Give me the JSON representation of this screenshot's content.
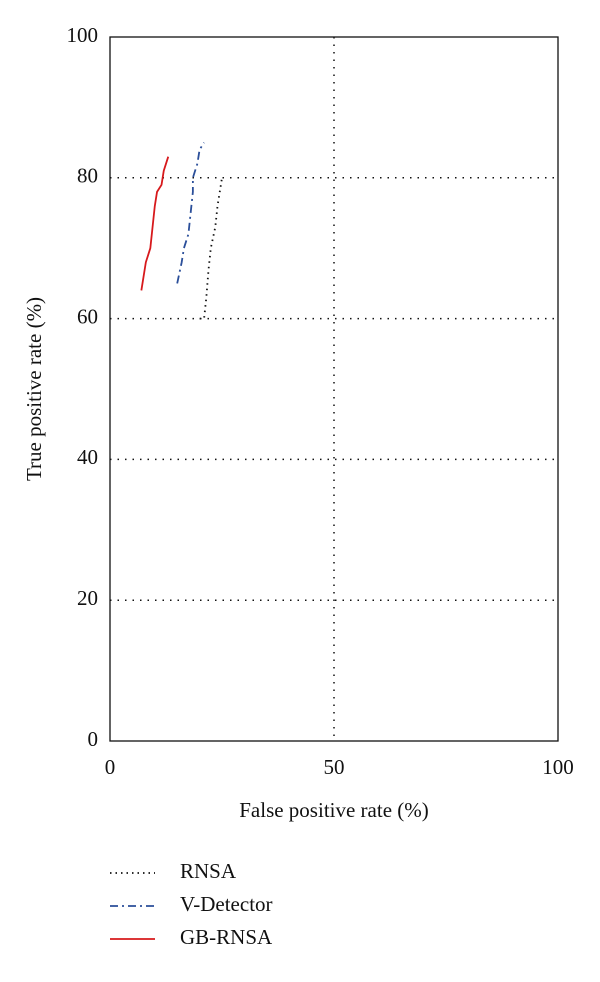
{
  "chart_data": {
    "type": "line",
    "x_label": "False positive rate (%)",
    "y_label": "True positive rate (%)",
    "xlim": [
      0,
      100
    ],
    "xticks": [
      0,
      50,
      100
    ],
    "ylim": [
      0,
      100
    ],
    "yticks": [
      0,
      20,
      40,
      60,
      80,
      100
    ],
    "grid": true,
    "legend": "bottom",
    "series": [
      {
        "name": "RNSA",
        "color": "#111111",
        "linestyle": "dotted",
        "x": [
          20,
          21,
          21.5,
          22,
          22.5,
          23.5,
          24,
          24.5,
          25
        ],
        "values": [
          60,
          60,
          63,
          67,
          70,
          73,
          76,
          78,
          80
        ]
      },
      {
        "name": "V-Detector",
        "color": "#2b4f9a",
        "linestyle": "dashdot",
        "x": [
          15,
          16,
          16.5,
          17.5,
          18,
          18.5,
          18.5,
          19.5,
          20,
          21
        ],
        "values": [
          65,
          68,
          70,
          72,
          75,
          78,
          80,
          82,
          84,
          85
        ]
      },
      {
        "name": "GB-RNSA",
        "color": "#d7191c",
        "linestyle": "solid",
        "x": [
          7,
          7.5,
          8,
          9,
          9.5,
          10,
          10.5,
          11.5,
          12,
          13
        ],
        "values": [
          64,
          66,
          68,
          70,
          73,
          76,
          78,
          79,
          81,
          83
        ]
      }
    ]
  }
}
